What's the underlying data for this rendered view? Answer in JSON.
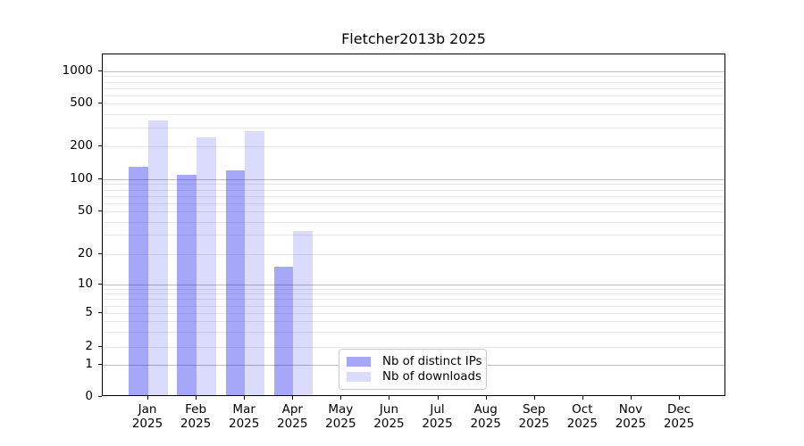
{
  "title": "Fletcher2013b 2025",
  "chart_data": {
    "type": "bar",
    "title": "Fletcher2013b 2025",
    "categories": [
      "Jan",
      "Feb",
      "Mar",
      "Apr",
      "May",
      "Jun",
      "Jul",
      "Aug",
      "Sep",
      "Oct",
      "Nov",
      "Dec"
    ],
    "year_label": "2025",
    "series": [
      {
        "name": "Nb of distinct IPs",
        "color": "rgba(15,15,240,0.37)",
        "values": [
          130,
          110,
          120,
          15,
          0,
          0,
          0,
          0,
          0,
          0,
          0,
          0
        ]
      },
      {
        "name": "Nb of downloads",
        "color": "rgba(15,15,240,0.15)",
        "values": [
          350,
          240,
          275,
          33,
          0,
          0,
          0,
          0,
          0,
          0,
          0,
          0
        ]
      }
    ],
    "xlabel": "",
    "ylabel": "",
    "y_axis": {
      "scale": "symlog",
      "ticks": [
        0,
        1,
        2,
        5,
        10,
        20,
        50,
        100,
        200,
        500,
        1000
      ],
      "tick_labels": [
        "0",
        "1",
        "2",
        "5",
        "10",
        "20",
        "50",
        "100",
        "200",
        "500",
        "1000"
      ],
      "major_gridlines": [
        1,
        10,
        100,
        1000
      ],
      "minor_gridlines": [
        2,
        3,
        4,
        5,
        6,
        7,
        8,
        9,
        20,
        30,
        40,
        50,
        60,
        70,
        80,
        90,
        200,
        300,
        400,
        500,
        600,
        700,
        800,
        900
      ],
      "ylim": [
        0,
        1450
      ],
      "anchors": [
        [
          0,
          384
        ],
        [
          1,
          348
        ],
        [
          2,
          328
        ],
        [
          5,
          290
        ],
        [
          10,
          258
        ],
        [
          20,
          223.5
        ],
        [
          50,
          176
        ],
        [
          100,
          140
        ],
        [
          200,
          103
        ],
        [
          500,
          55
        ],
        [
          1000,
          19
        ]
      ]
    },
    "legend": {
      "position": "lower-center",
      "items": [
        "Nb of distinct IPs",
        "Nb of downloads"
      ]
    },
    "grid": true,
    "colors": {
      "bar_distinct_ips": "rgba(15,15,240,0.37)",
      "bar_downloads": "rgba(15,15,240,0.15)",
      "major_grid": "#bdbdbd",
      "minor_grid": "#e7e7e7",
      "spine": "#000000",
      "text": "#000000",
      "background": "#ffffff"
    }
  }
}
